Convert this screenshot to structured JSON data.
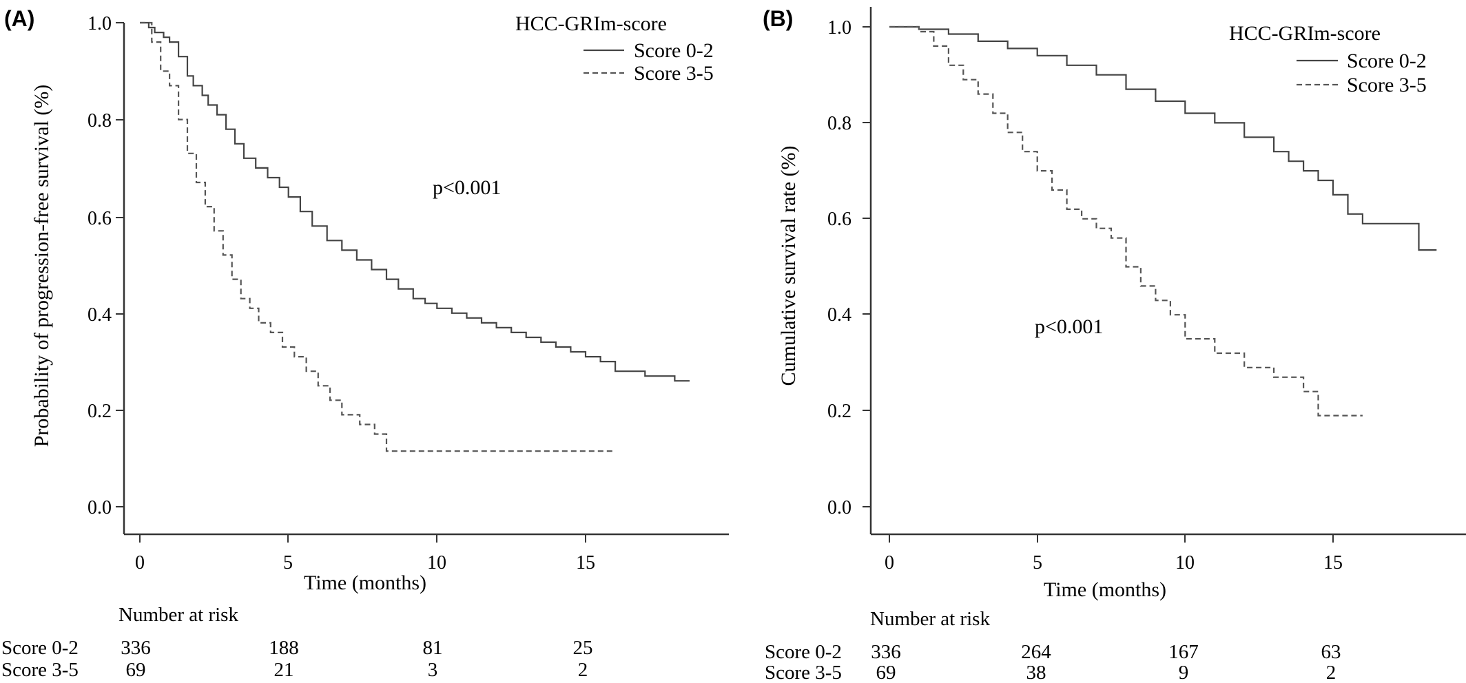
{
  "chart_data": [
    {
      "panel_label": "(A)",
      "type": "line",
      "step": true,
      "xlabel": "Time (months)",
      "ylabel": "Probability of progression-free survival (%)",
      "xlim": [
        0,
        20
      ],
      "ylim": [
        0,
        1
      ],
      "xticks": [
        0,
        5,
        10,
        15
      ],
      "yticks": [
        "0.0",
        "0.2",
        "0.4",
        "0.6",
        "0.8",
        "1.0"
      ],
      "legend_title": "HCC-GRIm-score",
      "legend_position": "top-right",
      "annotation": "p<0.001",
      "series": [
        {
          "name": "Score 0-2",
          "line_style": "solid",
          "x": [
            0,
            0.3,
            0.5,
            0.8,
            1.0,
            1.3,
            1.6,
            1.8,
            2.1,
            2.3,
            2.6,
            2.9,
            3.2,
            3.5,
            3.9,
            4.3,
            4.7,
            5.0,
            5.4,
            5.8,
            6.3,
            6.8,
            7.3,
            7.8,
            8.3,
            8.7,
            9.2,
            9.6,
            10.0,
            10.5,
            11.0,
            11.5,
            12.0,
            12.5,
            13.0,
            13.5,
            14.0,
            14.5,
            15.0,
            15.5,
            16.0,
            17.0,
            18.0,
            18.5
          ],
          "y": [
            1.0,
            0.99,
            0.98,
            0.97,
            0.96,
            0.93,
            0.89,
            0.87,
            0.85,
            0.83,
            0.81,
            0.78,
            0.75,
            0.72,
            0.7,
            0.68,
            0.66,
            0.64,
            0.61,
            0.58,
            0.55,
            0.53,
            0.51,
            0.49,
            0.47,
            0.45,
            0.43,
            0.42,
            0.41,
            0.4,
            0.39,
            0.38,
            0.37,
            0.36,
            0.35,
            0.34,
            0.33,
            0.32,
            0.31,
            0.3,
            0.28,
            0.27,
            0.26,
            0.26
          ]
        },
        {
          "name": "Score 3-5",
          "line_style": "dashed",
          "x": [
            0,
            0.4,
            0.7,
            1.0,
            1.3,
            1.6,
            1.9,
            2.2,
            2.5,
            2.8,
            3.1,
            3.4,
            3.7,
            4.0,
            4.4,
            4.8,
            5.2,
            5.6,
            6.0,
            6.4,
            6.8,
            7.4,
            7.9,
            8.3,
            9.0,
            10.0,
            12.0,
            14.0,
            16.0
          ],
          "y": [
            1.0,
            0.96,
            0.9,
            0.87,
            0.8,
            0.73,
            0.67,
            0.62,
            0.57,
            0.52,
            0.47,
            0.43,
            0.41,
            0.38,
            0.36,
            0.33,
            0.31,
            0.28,
            0.25,
            0.22,
            0.19,
            0.17,
            0.15,
            0.115,
            0.115,
            0.115,
            0.115,
            0.115,
            0.115
          ]
        }
      ],
      "risk_table": {
        "title": "Number at risk",
        "rows": [
          {
            "label": "Score 0-2",
            "values": [
              "336",
              "188",
              "81",
              "25"
            ]
          },
          {
            "label": "Score 3-5",
            "values": [
              "69",
              "21",
              "3",
              "2"
            ]
          }
        ]
      }
    },
    {
      "panel_label": "(B)",
      "type": "line",
      "step": true,
      "xlabel": "Time (months)",
      "ylabel": "Cumulative survival rate (%)",
      "xlim": [
        0,
        20
      ],
      "ylim": [
        0,
        1
      ],
      "xticks": [
        0,
        5,
        10,
        15
      ],
      "yticks": [
        "0.0",
        "0.2",
        "0.4",
        "0.6",
        "0.8",
        "1.0"
      ],
      "legend_title": "HCC-GRIm-score",
      "legend_position": "top-right",
      "annotation": "p<0.001",
      "series": [
        {
          "name": "Score 0-2",
          "line_style": "solid",
          "x": [
            0,
            1.0,
            2.0,
            3.0,
            4.0,
            5.0,
            6.0,
            7.0,
            8.0,
            9.0,
            10.0,
            11.0,
            12.0,
            13.0,
            13.5,
            14.0,
            14.5,
            15.0,
            15.5,
            16.0,
            17.0,
            17.9,
            18.5
          ],
          "y": [
            1.0,
            0.995,
            0.985,
            0.97,
            0.955,
            0.94,
            0.92,
            0.9,
            0.87,
            0.845,
            0.82,
            0.8,
            0.77,
            0.74,
            0.72,
            0.7,
            0.68,
            0.65,
            0.61,
            0.59,
            0.59,
            0.535,
            0.535
          ]
        },
        {
          "name": "Score 3-5",
          "line_style": "dashed",
          "x": [
            0,
            1.0,
            1.5,
            2.0,
            2.5,
            3.0,
            3.5,
            4.0,
            4.5,
            5.0,
            5.5,
            6.0,
            6.5,
            7.0,
            7.5,
            8.0,
            8.5,
            9.0,
            9.5,
            10.0,
            11.0,
            12.0,
            13.0,
            14.0,
            14.5,
            16.0
          ],
          "y": [
            1.0,
            0.99,
            0.96,
            0.92,
            0.89,
            0.86,
            0.82,
            0.78,
            0.74,
            0.7,
            0.66,
            0.62,
            0.6,
            0.58,
            0.56,
            0.5,
            0.46,
            0.43,
            0.4,
            0.35,
            0.32,
            0.29,
            0.27,
            0.24,
            0.19,
            0.19
          ]
        }
      ],
      "risk_table": {
        "title": "Number at risk",
        "rows": [
          {
            "label": "Score 0-2",
            "values": [
              "336",
              "264",
              "167",
              "63"
            ]
          },
          {
            "label": "Score 3-5",
            "values": [
              "69",
              "38",
              "9",
              "2"
            ]
          }
        ]
      }
    }
  ]
}
